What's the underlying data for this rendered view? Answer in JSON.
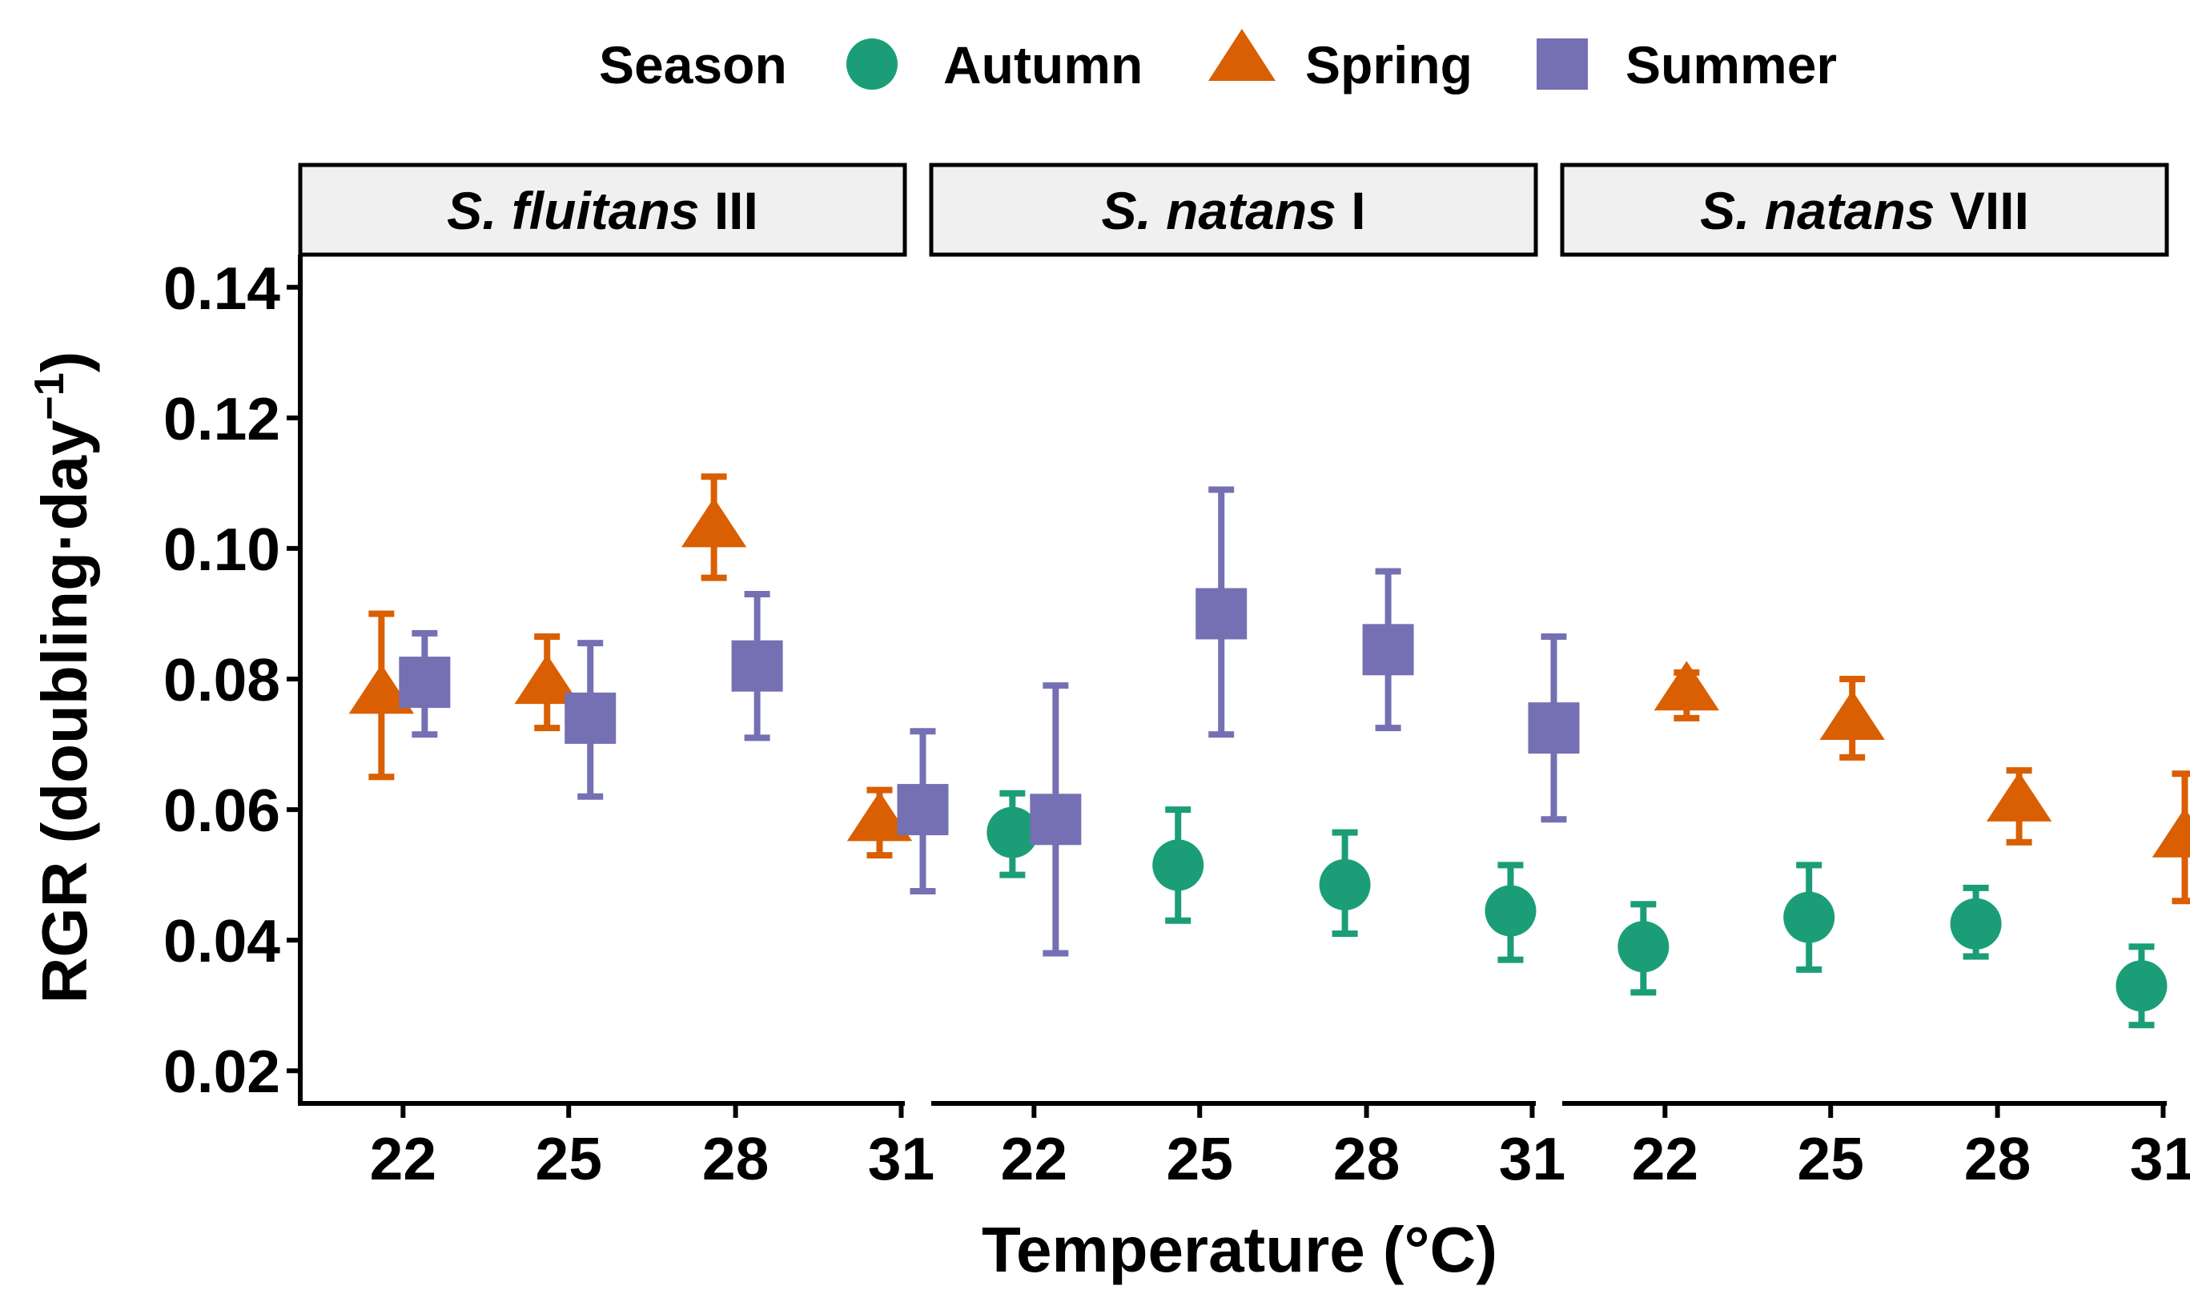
{
  "chart_data": {
    "type": "scatter",
    "legend": {
      "title": "Season",
      "position": "top",
      "entries": [
        {
          "name": "Autumn",
          "shape": "circle",
          "color": "#1b9e77"
        },
        {
          "name": "Spring",
          "shape": "triangle",
          "color": "#d95f02"
        },
        {
          "name": "Summer",
          "shape": "square",
          "color": "#7570b3"
        }
      ]
    },
    "xlabel": "Temperature (°C)",
    "ylabel": "RGR (doubling·day",
    "ylabel_superscript": "−1",
    "ylabel_close": ")",
    "x_categories": [
      "22",
      "25",
      "28",
      "31"
    ],
    "y_ticks": [
      "0.02",
      "0.04",
      "0.06",
      "0.08",
      "0.10",
      "0.12",
      "0.14"
    ],
    "ylim": [
      0.015,
      0.145
    ],
    "grid": false,
    "panels": [
      {
        "label_italic": "S. fluitans",
        "label_rest": " III",
        "series": [
          {
            "name": "Spring",
            "points": [
              {
                "x": "22",
                "y": 0.0775,
                "low": 0.065,
                "high": 0.09
              },
              {
                "x": "25",
                "y": 0.079,
                "low": 0.0725,
                "high": 0.0865
              },
              {
                "x": "28",
                "y": 0.103,
                "low": 0.0955,
                "high": 0.111
              },
              {
                "x": "31",
                "y": 0.058,
                "low": 0.053,
                "high": 0.063
              }
            ]
          },
          {
            "name": "Summer",
            "points": [
              {
                "x": "22",
                "y": 0.0795,
                "low": 0.0715,
                "high": 0.087
              },
              {
                "x": "25",
                "y": 0.074,
                "low": 0.062,
                "high": 0.0855
              },
              {
                "x": "28",
                "y": 0.082,
                "low": 0.071,
                "high": 0.093
              },
              {
                "x": "31",
                "y": 0.06,
                "low": 0.0475,
                "high": 0.072
              }
            ]
          }
        ]
      },
      {
        "label_italic": "S. natans",
        "label_rest": " I",
        "series": [
          {
            "name": "Autumn",
            "points": [
              {
                "x": "22",
                "y": 0.0565,
                "low": 0.05,
                "high": 0.0625
              },
              {
                "x": "25",
                "y": 0.0515,
                "low": 0.043,
                "high": 0.06
              },
              {
                "x": "28",
                "y": 0.0485,
                "low": 0.041,
                "high": 0.0565
              },
              {
                "x": "31",
                "y": 0.0445,
                "low": 0.037,
                "high": 0.0515
              }
            ]
          },
          {
            "name": "Summer",
            "points": [
              {
                "x": "22",
                "y": 0.0585,
                "low": 0.038,
                "high": 0.079
              },
              {
                "x": "25",
                "y": 0.09,
                "low": 0.0715,
                "high": 0.109
              },
              {
                "x": "28",
                "y": 0.0845,
                "low": 0.0725,
                "high": 0.0965
              },
              {
                "x": "31",
                "y": 0.0725,
                "low": 0.0585,
                "high": 0.0865
              }
            ]
          }
        ]
      },
      {
        "label_italic": "S. natans",
        "label_rest": " VIII",
        "series": [
          {
            "name": "Autumn",
            "points": [
              {
                "x": "22",
                "y": 0.039,
                "low": 0.032,
                "high": 0.0455
              },
              {
                "x": "25",
                "y": 0.0435,
                "low": 0.0355,
                "high": 0.0515
              },
              {
                "x": "28",
                "y": 0.0425,
                "low": 0.0375,
                "high": 0.048
              },
              {
                "x": "31",
                "y": 0.033,
                "low": 0.027,
                "high": 0.039
              }
            ]
          },
          {
            "name": "Spring",
            "points": [
              {
                "x": "22",
                "y": 0.078,
                "low": 0.074,
                "high": 0.081
              },
              {
                "x": "25",
                "y": 0.0735,
                "low": 0.068,
                "high": 0.08
              },
              {
                "x": "28",
                "y": 0.061,
                "low": 0.055,
                "high": 0.066
              },
              {
                "x": "31",
                "y": 0.0555,
                "low": 0.046,
                "high": 0.0655
              }
            ]
          }
        ]
      }
    ]
  }
}
